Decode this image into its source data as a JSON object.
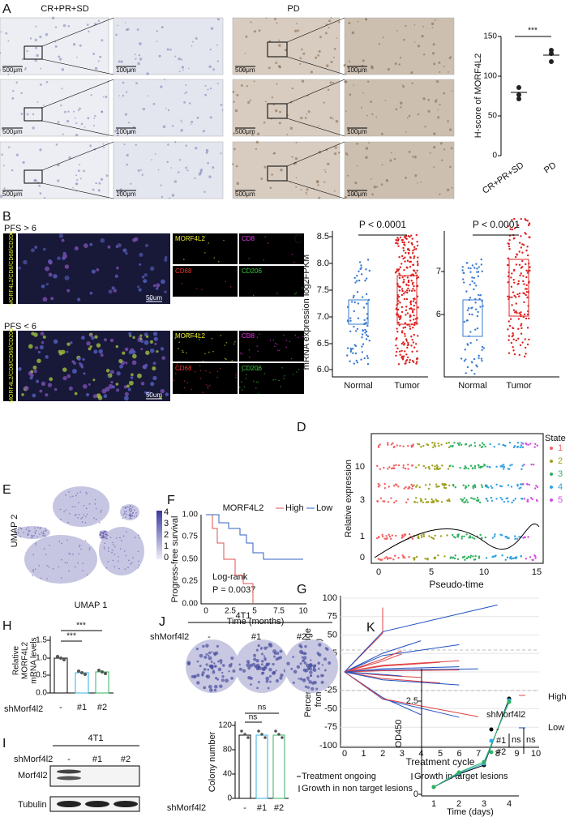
{
  "panel_a": {
    "letter": "A",
    "group_labels": [
      "CR+PR+SD",
      "PD"
    ],
    "scale_labels": [
      "500μm",
      "100μm"
    ],
    "chart": {
      "y_label": "H-score of MORF4L2",
      "y_ticks": [
        "150",
        "100",
        "50",
        "0"
      ],
      "x_labels": [
        "CR+PR+SD",
        "PD"
      ],
      "significance": "***"
    }
  },
  "panel_b": {
    "letter": "B",
    "groups": [
      "PFS > 6",
      "PFS < 6"
    ],
    "merge_label": "MORF4L2/CD8/CD68/CD206",
    "channels": [
      "MORF4L2",
      "CD8",
      "CD68",
      "CD206"
    ],
    "scale_label": "50um"
  },
  "panel_c": {
    "letter": "C",
    "y_label": "mRNA expression log2FPKM",
    "left_ticks": [
      "8.5",
      "8.0",
      "7.5",
      "7.0",
      "6.5",
      "6.0"
    ],
    "right_ticks": [
      "7",
      "6"
    ],
    "p_value": "P < 0.0001",
    "categories": [
      "Normal",
      "Tumor"
    ]
  },
  "panel_d": {
    "letter": "D",
    "y_label": "Relative expression",
    "y_ticks": [
      "10",
      "3",
      "1",
      "0"
    ],
    "x_label": "Pseudo-time",
    "x_ticks": [
      "0",
      "5",
      "10",
      "15"
    ],
    "legend_title": "State",
    "states": [
      "1",
      "2",
      "3",
      "4",
      "5"
    ]
  },
  "panel_e": {
    "letter": "E",
    "y_label": "UMAP 2",
    "x_label": "UMAP 1",
    "colorbar_ticks": [
      "4",
      "3",
      "2",
      "1",
      "0"
    ]
  },
  "panel_f": {
    "letter": "F",
    "legend_title": "MORF4L2",
    "legend": [
      "High",
      "Low"
    ],
    "y_label": "Progress-free survival",
    "y_ticks": [
      "1.00",
      "0.75",
      "0.50",
      "0.25",
      "0.00"
    ],
    "x_label": "Time (months)",
    "x_ticks": [
      "0",
      "2.5",
      "5",
      "7.5",
      "10"
    ],
    "test": "Log-rank",
    "p_value": "P = 0.0037"
  },
  "panel_g": {
    "letter": "G",
    "y_label": [
      "Percentage of Change",
      "from Baseline(%)"
    ],
    "y_ticks": [
      "100",
      "75",
      "50",
      "25",
      "0",
      "-25",
      "-50",
      "-75",
      "-100"
    ],
    "x_label": "Treatment cycle",
    "x_ticks": [
      "0",
      "1",
      "2",
      "3",
      "4",
      "5",
      "6",
      "7",
      "8",
      "9",
      "10"
    ],
    "legend": [
      "High",
      "Low"
    ],
    "notes": [
      "Treatment ongoing",
      "Growth in target lesions",
      "Growth in non target lesions"
    ]
  },
  "panel_h": {
    "letter": "H",
    "y_label": [
      "Relative",
      "MORF4L2",
      "mRNA levels"
    ],
    "y_ticks": [
      "1.5",
      "1.0",
      "0.5",
      "0.0"
    ],
    "significance": "***",
    "group_label": "shMorf4l2",
    "categories": [
      "-",
      "#1",
      "#2"
    ]
  },
  "panel_i": {
    "letter": "I",
    "cell_line": "4T1",
    "group_label": "shMorf4l2",
    "categories": [
      "-",
      "#1",
      "#2"
    ],
    "bands": [
      "Morf4l2",
      "Tubulin"
    ]
  },
  "panel_j": {
    "letter": "J",
    "cell_line": "4T1",
    "group_label": "shMorf4l2",
    "categories": [
      "-",
      "#1",
      "#2"
    ],
    "y_label": "Colony number",
    "y_ticks": [
      "120",
      "80",
      "40",
      "0"
    ],
    "significance": "ns"
  },
  "panel_k": {
    "letter": "K",
    "y_label": "OD450",
    "y_ticks": [
      "2.5",
      "0"
    ],
    "x_label": "Time (days)",
    "x_ticks": [
      "1",
      "2",
      "3",
      "4"
    ],
    "legend_title": "shMorf4l2",
    "legend": [
      "-",
      "#1",
      "#2"
    ],
    "significance": "ns"
  }
}
